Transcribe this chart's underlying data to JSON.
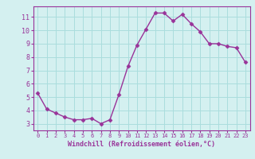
{
  "x": [
    0,
    1,
    2,
    3,
    4,
    5,
    6,
    7,
    8,
    9,
    10,
    11,
    12,
    13,
    14,
    15,
    16,
    17,
    18,
    19,
    20,
    21,
    22,
    23
  ],
  "y": [
    5.3,
    4.1,
    3.8,
    3.5,
    3.3,
    3.3,
    3.4,
    3.0,
    3.3,
    5.2,
    7.3,
    8.9,
    10.1,
    11.3,
    11.3,
    10.7,
    11.2,
    10.5,
    9.9,
    9.0,
    9.0,
    8.8,
    8.7,
    7.6
  ],
  "line_color": "#993399",
  "marker": "D",
  "marker_size": 2.5,
  "bg_color": "#d4f0f0",
  "grid_color": "#aadddd",
  "xlabel": "Windchill (Refroidissement éolien,°C)",
  "xlabel_color": "#993399",
  "tick_color": "#993399",
  "label_color": "#993399",
  "xlim": [
    -0.5,
    23.5
  ],
  "ylim": [
    2.5,
    11.8
  ],
  "yticks": [
    3,
    4,
    5,
    6,
    7,
    8,
    9,
    10,
    11
  ],
  "xticks": [
    0,
    1,
    2,
    3,
    4,
    5,
    6,
    7,
    8,
    9,
    10,
    11,
    12,
    13,
    14,
    15,
    16,
    17,
    18,
    19,
    20,
    21,
    22,
    23
  ]
}
